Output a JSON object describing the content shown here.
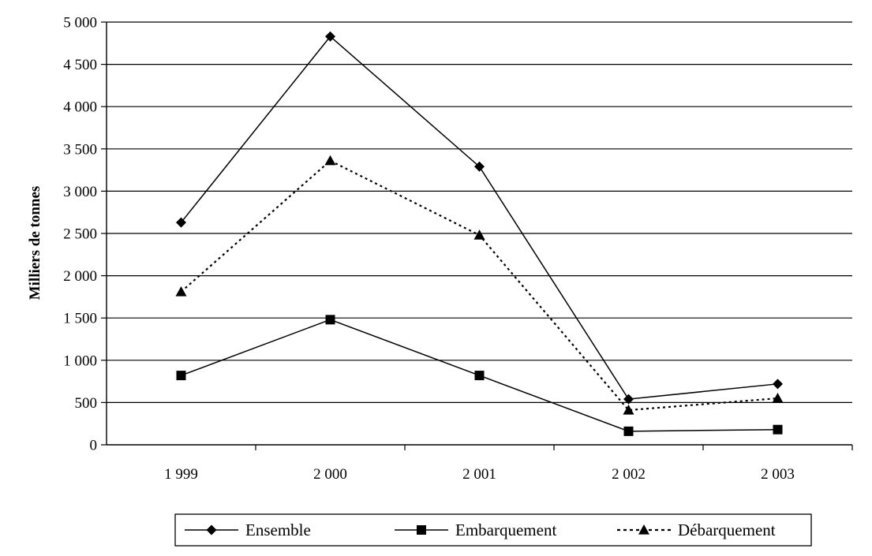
{
  "chart_data": {
    "type": "line",
    "title": "",
    "xlabel": "",
    "ylabel": "Milliers de tonnes",
    "categories": [
      "1 999",
      "2 000",
      "2 001",
      "2 002",
      "2 003"
    ],
    "ylim": [
      0,
      5000
    ],
    "yticks": [
      0,
      500,
      1000,
      1500,
      2000,
      2500,
      3000,
      3500,
      4000,
      4500,
      5000
    ],
    "ytick_labels": [
      "0",
      "500",
      "1 000",
      "1 500",
      "2 000",
      "2 500",
      "3 000",
      "3 500",
      "4 000",
      "4 500",
      "5 000"
    ],
    "grid": "horizontal",
    "legend_position": "bottom",
    "series": [
      {
        "name": "Ensemble",
        "values": [
          2630,
          4830,
          3290,
          540,
          720
        ],
        "marker": "diamond",
        "line_style": "solid",
        "color": "#000000"
      },
      {
        "name": "Embarquement",
        "values": [
          820,
          1480,
          820,
          160,
          180
        ],
        "marker": "square",
        "line_style": "solid",
        "color": "#000000"
      },
      {
        "name": "Débarquement",
        "values": [
          1810,
          3360,
          2480,
          410,
          550
        ],
        "marker": "triangle",
        "line_style": "dotted",
        "color": "#000000"
      }
    ]
  }
}
